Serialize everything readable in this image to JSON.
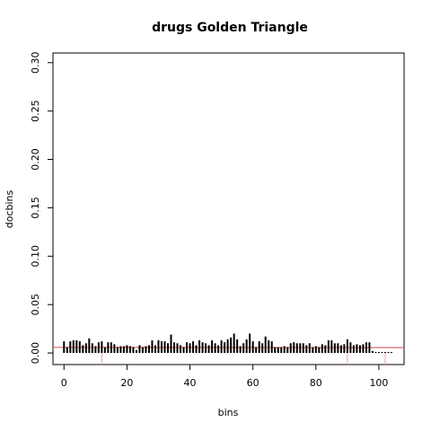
{
  "chart_data": {
    "type": "bar",
    "title": "drugs Golden Triangle",
    "xlabel": "bins",
    "ylabel": "docbins",
    "xlim": [
      -3.5,
      108
    ],
    "ylim": [
      -0.012,
      0.31
    ],
    "x_ticks": [
      0,
      20,
      40,
      60,
      80,
      100
    ],
    "x_tick_labels": [
      "0",
      "20",
      "40",
      "60",
      "80",
      "100"
    ],
    "y_ticks": [
      0.0,
      0.05,
      0.1,
      0.15,
      0.2,
      0.25,
      0.3
    ],
    "y_tick_labels": [
      "0.00",
      "0.05",
      "0.10",
      "0.15",
      "0.20",
      "0.25",
      "0.30"
    ],
    "reference_line": {
      "y_start": 0.0058,
      "y_end": 0.0055,
      "color": "#e06666"
    },
    "vertical_markers": {
      "x": [
        12,
        90,
        102
      ],
      "color": "#e9a0a0"
    },
    "x": [
      0,
      1,
      2,
      3,
      4,
      5,
      6,
      7,
      8,
      9,
      10,
      11,
      12,
      13,
      14,
      15,
      16,
      17,
      18,
      19,
      20,
      21,
      22,
      23,
      24,
      25,
      26,
      27,
      28,
      29,
      30,
      31,
      32,
      33,
      34,
      35,
      36,
      37,
      38,
      39,
      40,
      41,
      42,
      43,
      44,
      45,
      46,
      47,
      48,
      49,
      50,
      51,
      52,
      53,
      54,
      55,
      56,
      57,
      58,
      59,
      60,
      61,
      62,
      63,
      64,
      65,
      66,
      67,
      68,
      69,
      70,
      71,
      72,
      73,
      74,
      75,
      76,
      77,
      78,
      79,
      80,
      81,
      82,
      83,
      84,
      85,
      86,
      87,
      88,
      89,
      90,
      91,
      92,
      93,
      94,
      95,
      96,
      97,
      98,
      99,
      100,
      101,
      102,
      103,
      104
    ],
    "values": [
      0.012,
      0.006,
      0.012,
      0.013,
      0.013,
      0.012,
      0.008,
      0.01,
      0.015,
      0.01,
      0.007,
      0.011,
      0.012,
      0.006,
      0.011,
      0.011,
      0.009,
      0.006,
      0.007,
      0.007,
      0.008,
      0.007,
      0.006,
      0.003,
      0.008,
      0.006,
      0.007,
      0.008,
      0.013,
      0.008,
      0.013,
      0.012,
      0.012,
      0.01,
      0.019,
      0.011,
      0.01,
      0.008,
      0.006,
      0.011,
      0.01,
      0.012,
      0.008,
      0.013,
      0.011,
      0.01,
      0.008,
      0.013,
      0.01,
      0.008,
      0.013,
      0.011,
      0.014,
      0.016,
      0.02,
      0.014,
      0.007,
      0.01,
      0.014,
      0.02,
      0.012,
      0.006,
      0.012,
      0.01,
      0.017,
      0.013,
      0.012,
      0.006,
      0.006,
      0.006,
      0.007,
      0.006,
      0.01,
      0.011,
      0.01,
      0.01,
      0.01,
      0.008,
      0.01,
      0.006,
      0.007,
      0.006,
      0.009,
      0.008,
      0.013,
      0.013,
      0.01,
      0.01,
      0.008,
      0.009,
      0.014,
      0.011,
      0.008,
      0.009,
      0.008,
      0.009,
      0.011,
      0.011,
      0.002,
      0.001,
      0.001,
      0.001,
      0.001,
      0.001,
      0.001
    ]
  }
}
